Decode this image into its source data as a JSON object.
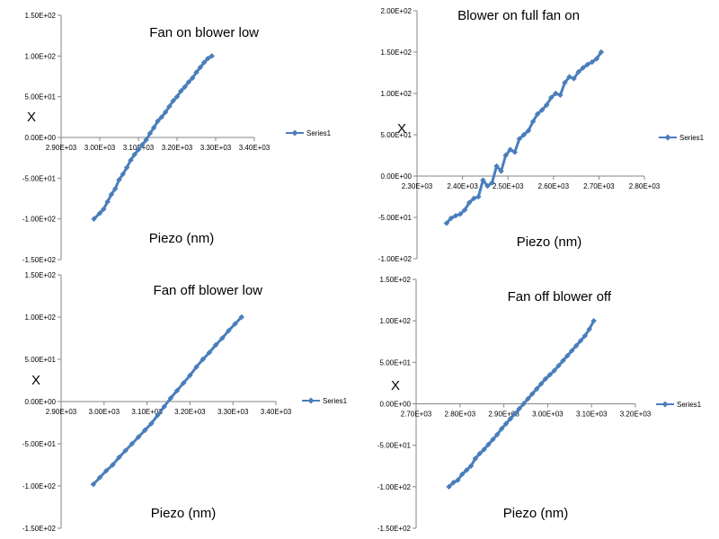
{
  "chart_data": [
    {
      "type": "line",
      "title": "Fan on blower low",
      "xlabel": "Piezo (nm)",
      "ylabel": "X",
      "xlim": [
        2900,
        3400
      ],
      "ylim": [
        -150,
        150
      ],
      "xticks": [
        "2.90E+03",
        "3.00E+03",
        "3.10E+03",
        "3.20E+03",
        "3.30E+03",
        "3.40E+03"
      ],
      "yticks": [
        "1.50E+02",
        "1.00E+02",
        "5.00E+01",
        "0.00E+00",
        "-5.00E+01",
        "-1.00E+02",
        "-1.50E+02"
      ],
      "grid": false,
      "legend": "right",
      "series": [
        {
          "name": "Series1",
          "color": "#4a7ebb",
          "x": [
            2985,
            3000,
            3010,
            3020,
            3030,
            3040,
            3050,
            3060,
            3070,
            3080,
            3090,
            3100,
            3110,
            3120,
            3130,
            3140,
            3150,
            3160,
            3170,
            3180,
            3190,
            3200,
            3210,
            3220,
            3230,
            3240,
            3250,
            3260,
            3270,
            3280,
            3290
          ],
          "y": [
            -100,
            -93,
            -88,
            -79,
            -70,
            -63,
            -52,
            -45,
            -37,
            -28,
            -21,
            -15,
            -9,
            -3,
            5,
            12,
            20,
            25,
            31,
            38,
            45,
            50,
            57,
            62,
            68,
            73,
            80,
            86,
            92,
            97,
            100
          ]
        }
      ]
    },
    {
      "type": "line",
      "title": "Blower on full fan on",
      "xlabel": "Piezo (nm)",
      "ylabel": "X",
      "xlim": [
        2300,
        2800
      ],
      "ylim": [
        -100,
        200
      ],
      "xticks": [
        "2.30E+03",
        "2.40E+03",
        "2.50E+03",
        "2.60E+03",
        "2.70E+03",
        "2.80E+03"
      ],
      "yticks": [
        "2.00E+02",
        "1.50E+02",
        "1.00E+02",
        "5.00E+01",
        "0.00E+00",
        "-5.00E+01",
        "-1.00E+02"
      ],
      "grid": false,
      "legend": "right",
      "series": [
        {
          "name": "Series1",
          "color": "#4a7ebb",
          "x": [
            2365,
            2375,
            2385,
            2395,
            2405,
            2415,
            2425,
            2435,
            2445,
            2455,
            2465,
            2475,
            2485,
            2495,
            2505,
            2515,
            2525,
            2535,
            2545,
            2555,
            2565,
            2575,
            2585,
            2595,
            2605,
            2615,
            2625,
            2635,
            2645,
            2655,
            2665,
            2675,
            2685,
            2695,
            2705
          ],
          "y": [
            -57,
            -51,
            -48,
            -46,
            -41,
            -32,
            -27,
            -25,
            -5,
            -12,
            -8,
            12,
            6,
            25,
            32,
            29,
            45,
            50,
            55,
            66,
            75,
            80,
            86,
            95,
            100,
            98,
            113,
            120,
            118,
            126,
            131,
            135,
            138,
            142,
            150
          ]
        }
      ]
    },
    {
      "type": "line",
      "title": "Fan off blower low",
      "xlabel": "Piezo (nm)",
      "ylabel": "X",
      "xlim": [
        2900,
        3400
      ],
      "ylim": [
        -150,
        150
      ],
      "xticks": [
        "2.90E+03",
        "3.00E+03",
        "3.10E+03",
        "3.20E+03",
        "3.30E+03",
        "3.40E+03"
      ],
      "yticks": [
        "1.50E+02",
        "1.00E+02",
        "5.00E+01",
        "0.00E+00",
        "-5.00E+01",
        "-1.00E+02",
        "-1.50E+02"
      ],
      "grid": false,
      "legend": "right",
      "series": [
        {
          "name": "Series1",
          "color": "#4a7ebb",
          "x": [
            2975,
            2990,
            3005,
            3020,
            3035,
            3050,
            3065,
            3080,
            3095,
            3110,
            3125,
            3140,
            3155,
            3170,
            3185,
            3200,
            3215,
            3230,
            3245,
            3260,
            3275,
            3290,
            3305,
            3320
          ],
          "y": [
            -98,
            -90,
            -82,
            -75,
            -66,
            -58,
            -50,
            -42,
            -34,
            -26,
            -16,
            -6,
            4,
            13,
            22,
            31,
            41,
            50,
            58,
            67,
            75,
            84,
            92,
            100
          ]
        }
      ]
    },
    {
      "type": "line",
      "title": "Fan off blower off",
      "xlabel": "Piezo (nm)",
      "ylabel": "X",
      "xlim": [
        2700,
        3200
      ],
      "ylim": [
        -150,
        150
      ],
      "xticks": [
        "2.70E+03",
        "2.80E+03",
        "2.90E+03",
        "3.00E+03",
        "3.10E+03",
        "3.20E+03"
      ],
      "yticks": [
        "1.50E+02",
        "1.00E+02",
        "5.00E+01",
        "0.00E+00",
        "-5.00E+01",
        "-1.00E+02",
        "-1.50E+02"
      ],
      "grid": false,
      "legend": "right",
      "series": [
        {
          "name": "Series1",
          "color": "#4a7ebb",
          "x": [
            2775,
            2785,
            2795,
            2805,
            2815,
            2825,
            2835,
            2845,
            2855,
            2865,
            2875,
            2885,
            2895,
            2905,
            2915,
            2925,
            2935,
            2945,
            2955,
            2965,
            2975,
            2985,
            2995,
            3005,
            3015,
            3025,
            3035,
            3045,
            3055,
            3065,
            3075,
            3085,
            3095,
            3105
          ],
          "y": [
            -100,
            -95,
            -92,
            -85,
            -80,
            -75,
            -66,
            -60,
            -55,
            -49,
            -43,
            -37,
            -30,
            -24,
            -18,
            -12,
            -6,
            0,
            6,
            12,
            18,
            24,
            30,
            35,
            40,
            46,
            52,
            58,
            64,
            70,
            76,
            82,
            90,
            100
          ]
        }
      ]
    }
  ]
}
